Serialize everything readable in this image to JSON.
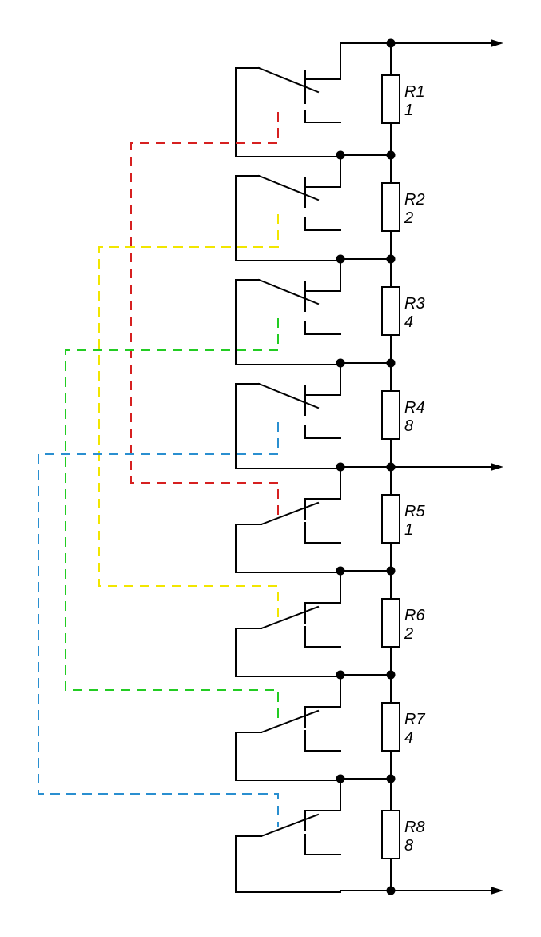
{
  "colors": {
    "background": "#ffffff",
    "wire": "#000000",
    "bit_1": "#d62020",
    "bit_2": "#f2e600",
    "bit_4": "#22cc22",
    "bit_8": "#2a8fd0"
  },
  "resistors": [
    {
      "name": "R1",
      "value": "1"
    },
    {
      "name": "R2",
      "value": "2"
    },
    {
      "name": "R3",
      "value": "4"
    },
    {
      "name": "R4",
      "value": "8"
    },
    {
      "name": "R5",
      "value": "1"
    },
    {
      "name": "R6",
      "value": "2"
    },
    {
      "name": "R7",
      "value": "4"
    },
    {
      "name": "R8",
      "value": "8"
    }
  ],
  "outputs": [
    "top-terminal",
    "middle-terminal",
    "bottom-terminal"
  ],
  "relay_links": [
    {
      "color": "bit_1",
      "upper": "R1",
      "lower": "R5"
    },
    {
      "color": "bit_2",
      "upper": "R2",
      "lower": "R6"
    },
    {
      "color": "bit_4",
      "upper": "R3",
      "lower": "R7"
    },
    {
      "color": "bit_8",
      "upper": "R4",
      "lower": "R8"
    }
  ]
}
